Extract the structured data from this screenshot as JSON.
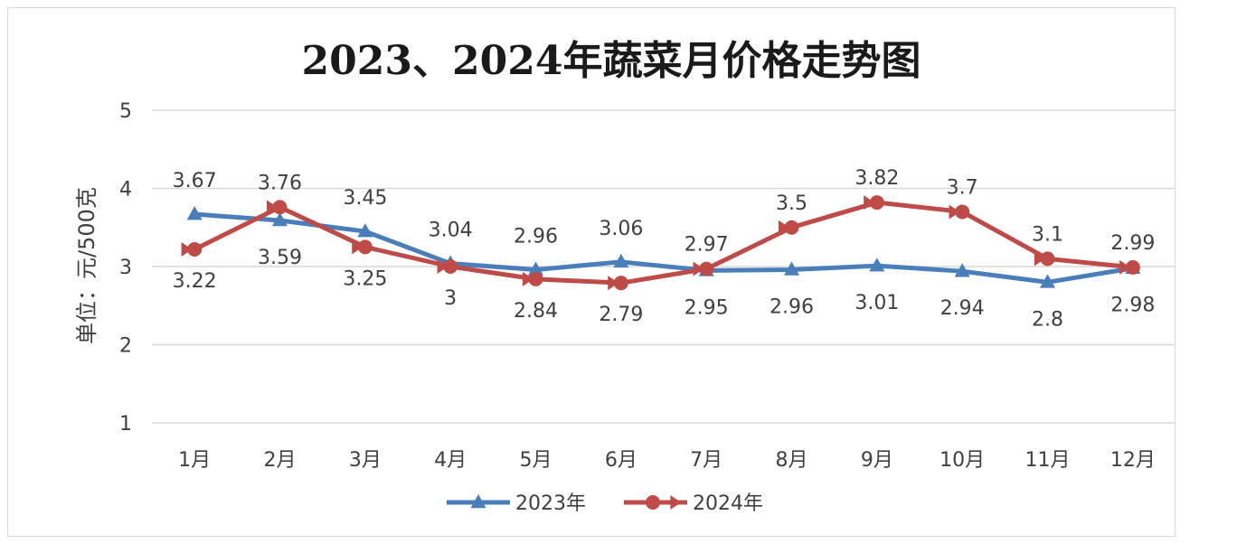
{
  "chart_data": {
    "type": "line",
    "title": "2023、2024年蔬菜月价格走势图",
    "ylabel": "单位：元/500克",
    "xlabel": "",
    "categories": [
      "1月",
      "2月",
      "3月",
      "4月",
      "5月",
      "6月",
      "7月",
      "8月",
      "9月",
      "10月",
      "11月",
      "12月"
    ],
    "ylim": [
      1,
      5
    ],
    "yticks": [
      1,
      2,
      3,
      4,
      5
    ],
    "grid": true,
    "legend_position": "bottom",
    "series": [
      {
        "name": "2023年",
        "color": "#4a7ebb",
        "marker": "triangle",
        "values": [
          3.67,
          3.59,
          3.45,
          3.04,
          2.96,
          3.06,
          2.95,
          2.96,
          3.01,
          2.94,
          2.8,
          2.98
        ]
      },
      {
        "name": "2024年",
        "color": "#be4b48",
        "marker": "circle-arrow",
        "values": [
          3.22,
          3.76,
          3.25,
          3.0,
          2.84,
          2.79,
          2.97,
          3.5,
          3.82,
          3.7,
          3.1,
          2.99
        ]
      }
    ],
    "data_labels": {
      "2023年": [
        "3.67",
        "3.59",
        "3.45",
        "3.04",
        "2.96",
        "3.06",
        "2.95",
        "2.96",
        "3.01",
        "2.94",
        "2.8",
        "2.98"
      ],
      "2024年": [
        "3.22",
        "3.76",
        "3.25",
        "3",
        "2.84",
        "2.79",
        "2.97",
        "3.5",
        "3.82",
        "3.7",
        "3.1",
        "2.99"
      ]
    }
  }
}
